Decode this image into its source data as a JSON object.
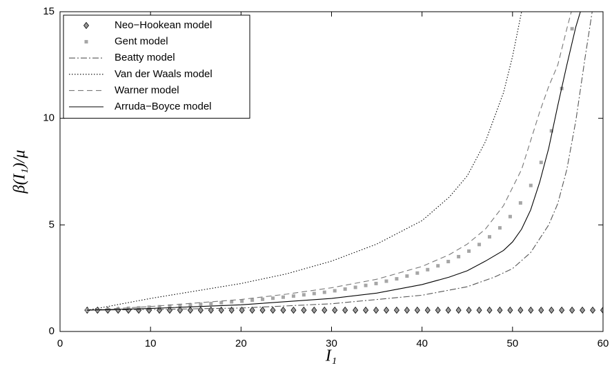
{
  "chart_data": {
    "type": "line",
    "x_label": "I₁",
    "y_label": "β(I₁)/μ",
    "xlim": [
      0,
      60
    ],
    "ylim": [
      0,
      15
    ],
    "xticks": [
      0,
      10,
      20,
      30,
      40,
      50,
      60
    ],
    "yticks": [
      0,
      5,
      10,
      15
    ],
    "grid": false,
    "legend": "upper left",
    "series": [
      {
        "name": "Neo−Hookean model",
        "color": "#999999",
        "linestyle": "none",
        "marker": "diamond",
        "x": [
          3,
          4.14,
          5.28,
          6.42,
          7.56,
          8.7,
          9.84,
          10.98,
          12.12,
          13.26,
          14.4,
          15.54,
          16.68,
          17.82,
          18.96,
          20.1,
          21.24,
          22.38,
          23.52,
          24.66,
          25.8,
          26.94,
          28.08,
          29.22,
          30.36,
          31.5,
          32.64,
          33.78,
          34.92,
          36.06,
          37.2,
          38.34,
          39.48,
          40.62,
          41.76,
          42.9,
          44.04,
          45.18,
          46.32,
          47.46,
          48.6,
          49.74,
          50.88,
          52.02,
          53.16,
          54.3,
          55.44,
          56.58,
          57.72,
          58.86,
          60
        ],
        "values": [
          1,
          1,
          1,
          1,
          1,
          1,
          1,
          1,
          1,
          1,
          1,
          1,
          1,
          1,
          1,
          1,
          1,
          1,
          1,
          1,
          1,
          1,
          1,
          1,
          1,
          1,
          1,
          1,
          1,
          1,
          1,
          1,
          1,
          1,
          1,
          1,
          1,
          1,
          1,
          1,
          1,
          1,
          1,
          1,
          1,
          1,
          1,
          1,
          1,
          1,
          1
        ]
      },
      {
        "name": "Gent model",
        "color": "#a6a6a6",
        "linestyle": "none",
        "marker": "square",
        "x": [
          3,
          4.14,
          5.28,
          6.42,
          7.56,
          8.7,
          9.84,
          10.98,
          12.12,
          13.26,
          14.4,
          15.54,
          16.68,
          17.82,
          18.96,
          20.1,
          21.24,
          22.38,
          23.52,
          24.66,
          25.8,
          26.94,
          28.08,
          29.22,
          30.36,
          31.5,
          32.64,
          33.78,
          34.92,
          36.06,
          37.2,
          38.34,
          39.48,
          40.62,
          41.76,
          42.9,
          44.04,
          45.18,
          46.32,
          47.46,
          48.6,
          49.74,
          50.88,
          52.02,
          53.16,
          54.3,
          55.44,
          56.58
        ],
        "values": [
          1,
          1.02,
          1.04,
          1.06,
          1.09,
          1.11,
          1.14,
          1.16,
          1.19,
          1.22,
          1.25,
          1.28,
          1.31,
          1.35,
          1.39,
          1.42,
          1.47,
          1.51,
          1.56,
          1.61,
          1.66,
          1.72,
          1.78,
          1.84,
          1.91,
          1.99,
          2.07,
          2.16,
          2.25,
          2.36,
          2.47,
          2.6,
          2.74,
          2.9,
          3.08,
          3.28,
          3.51,
          3.77,
          4.08,
          4.44,
          4.86,
          5.39,
          6.03,
          6.85,
          7.93,
          9.41,
          11.4,
          14.2
        ]
      },
      {
        "name": "Beatty model",
        "color": "#555555",
        "linestyle": "-.",
        "marker": "none",
        "x": [
          3,
          10,
          20,
          30,
          40,
          45,
          48,
          50,
          52,
          54,
          55,
          56,
          57,
          58,
          58.8
        ],
        "values": [
          1,
          1.03,
          1.1,
          1.3,
          1.7,
          2.1,
          2.55,
          2.95,
          3.7,
          5.0,
          6.0,
          7.6,
          9.9,
          12.8,
          15
        ]
      },
      {
        "name": "Van der Waals model",
        "color": "#000000",
        "linestyle": ":",
        "marker": "none",
        "x": [
          3,
          5,
          10,
          15,
          20,
          25,
          30,
          35,
          40,
          43,
          45,
          47,
          49,
          50,
          51
        ],
        "values": [
          1,
          1.15,
          1.55,
          1.9,
          2.25,
          2.7,
          3.3,
          4.1,
          5.2,
          6.3,
          7.3,
          8.9,
          11.2,
          12.9,
          15
        ]
      },
      {
        "name": "Warner model",
        "color": "#777777",
        "linestyle": "--",
        "marker": "none",
        "x": [
          3,
          10,
          20,
          25,
          30,
          35,
          40,
          43,
          45,
          47,
          49,
          51,
          53,
          54,
          55,
          56,
          56.5
        ],
        "values": [
          1,
          1.17,
          1.5,
          1.75,
          2.05,
          2.45,
          3.05,
          3.6,
          4.1,
          4.8,
          5.9,
          7.6,
          10.3,
          11.5,
          12.5,
          14.2,
          15
        ]
      },
      {
        "name": "Arruda−Boyce model",
        "color": "#000000",
        "linestyle": "-",
        "marker": "none",
        "x": [
          3,
          10,
          20,
          30,
          35,
          40,
          43,
          45,
          47,
          49,
          50,
          51,
          52,
          53,
          54,
          55,
          56,
          57,
          57.5
        ],
        "values": [
          1,
          1.08,
          1.25,
          1.55,
          1.8,
          2.2,
          2.55,
          2.85,
          3.3,
          3.8,
          4.2,
          4.8,
          5.7,
          7.0,
          8.6,
          10.6,
          12.5,
          14.3,
          15
        ]
      }
    ]
  }
}
